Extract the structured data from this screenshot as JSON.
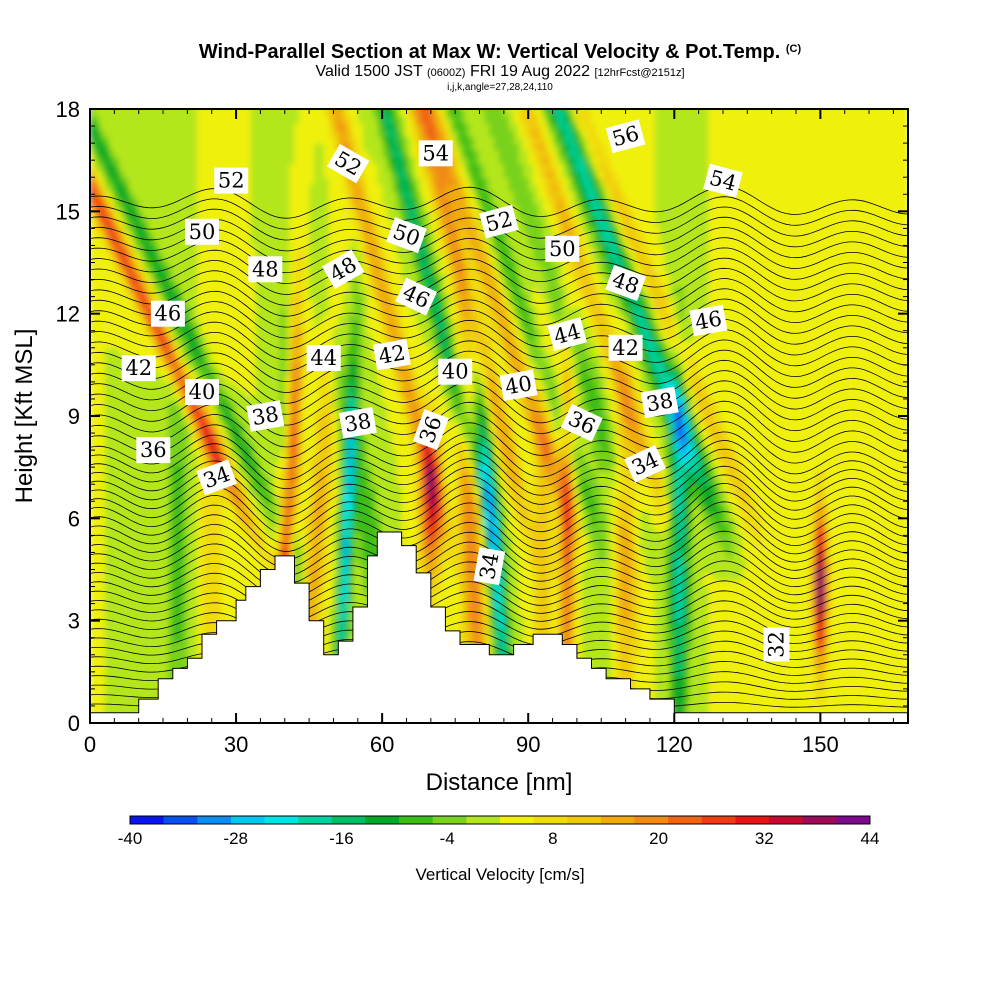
{
  "title": {
    "main": "Wind-Parallel Section at Max W: Vertical Velocity & Pot.Temp.",
    "copyright": "(C)",
    "valid_prefix": "Valid 1500 JST",
    "valid_utc": "(0600Z)",
    "valid_date": "FRI 19 Aug 2022",
    "forecast": "[12hrFcst@2151z]",
    "indices": "i,j,k,angle=27,28,24,110"
  },
  "chart_data": {
    "type": "heatmap",
    "xlabel": "Distance [nm]",
    "ylabel": "Height [Kft MSL]",
    "xlim": [
      0,
      168
    ],
    "ylim": [
      0,
      18
    ],
    "x_ticks": [
      "0",
      "30",
      "60",
      "90",
      "120",
      "150"
    ],
    "x_tick_values": [
      0,
      30,
      60,
      90,
      120,
      150
    ],
    "y_ticks": [
      "0",
      "3",
      "6",
      "9",
      "12",
      "15",
      "18"
    ],
    "y_tick_values": [
      0,
      3,
      6,
      9,
      12,
      15,
      18
    ],
    "colorbar": {
      "title": "Vertical Velocity [cm/s]",
      "min": -40,
      "max": 44,
      "step": 4,
      "tick_labels": [
        "-40",
        "-28",
        "-16",
        "-4",
        "8",
        "20",
        "32",
        "44"
      ],
      "tick_values": [
        -40,
        -28,
        -16,
        -4,
        8,
        20,
        32,
        44
      ],
      "colors": [
        "#0a14f0",
        "#0a50f0",
        "#0a8cf0",
        "#00c8f0",
        "#00e6e6",
        "#00d2a0",
        "#00be64",
        "#00aa28",
        "#3cbe14",
        "#78d21e",
        "#b4e61e",
        "#f0f00a",
        "#f0dc0a",
        "#f0c80a",
        "#f0aa0a",
        "#f08c14",
        "#f06414",
        "#f03c14",
        "#e61414",
        "#c80a32",
        "#a00a5a",
        "#7d0a8c"
      ]
    },
    "terrain_kft": [
      [
        0,
        0.3
      ],
      [
        10,
        0.3
      ],
      [
        10,
        0.7
      ],
      [
        14,
        0.7
      ],
      [
        14,
        1.3
      ],
      [
        17,
        1.3
      ],
      [
        17,
        1.6
      ],
      [
        20,
        1.6
      ],
      [
        20,
        1.9
      ],
      [
        23,
        1.9
      ],
      [
        23,
        2.6
      ],
      [
        26,
        2.6
      ],
      [
        26,
        3.0
      ],
      [
        30,
        3.0
      ],
      [
        30,
        3.6
      ],
      [
        32,
        3.6
      ],
      [
        32,
        4.0
      ],
      [
        35,
        4.0
      ],
      [
        35,
        4.5
      ],
      [
        38,
        4.5
      ],
      [
        38,
        4.9
      ],
      [
        42,
        4.9
      ],
      [
        42,
        4.1
      ],
      [
        45,
        4.1
      ],
      [
        45,
        3.0
      ],
      [
        48,
        3.0
      ],
      [
        48,
        2.0
      ],
      [
        51,
        2.0
      ],
      [
        51,
        2.4
      ],
      [
        54,
        2.4
      ],
      [
        54,
        3.4
      ],
      [
        57,
        3.4
      ],
      [
        57,
        4.9
      ],
      [
        59,
        4.9
      ],
      [
        59,
        5.6
      ],
      [
        64,
        5.6
      ],
      [
        64,
        5.2
      ],
      [
        67,
        5.2
      ],
      [
        67,
        4.4
      ],
      [
        70,
        4.4
      ],
      [
        70,
        3.4
      ],
      [
        73,
        3.4
      ],
      [
        73,
        2.7
      ],
      [
        76,
        2.7
      ],
      [
        76,
        2.3
      ],
      [
        82,
        2.3
      ],
      [
        82,
        2.0
      ],
      [
        87,
        2.0
      ],
      [
        87,
        2.3
      ],
      [
        91,
        2.3
      ],
      [
        91,
        2.6
      ],
      [
        97,
        2.6
      ],
      [
        97,
        2.3
      ],
      [
        100,
        2.3
      ],
      [
        100,
        1.9
      ],
      [
        103,
        1.9
      ],
      [
        103,
        1.6
      ],
      [
        106,
        1.6
      ],
      [
        106,
        1.3
      ],
      [
        111,
        1.3
      ],
      [
        111,
        1.0
      ],
      [
        115,
        1.0
      ],
      [
        115,
        0.7
      ],
      [
        120,
        0.7
      ],
      [
        120,
        0.3
      ],
      [
        168,
        0.3
      ]
    ],
    "contour_labels": [
      {
        "text": "52",
        "x": 29,
        "y": 15.9,
        "rot": 0
      },
      {
        "text": "50",
        "x": 23,
        "y": 14.4,
        "rot": 0
      },
      {
        "text": "48",
        "x": 36,
        "y": 13.3,
        "rot": 0
      },
      {
        "text": "46",
        "x": 16,
        "y": 12.0,
        "rot": 0
      },
      {
        "text": "42",
        "x": 10,
        "y": 10.4,
        "rot": 0
      },
      {
        "text": "40",
        "x": 23,
        "y": 9.7,
        "rot": 0
      },
      {
        "text": "38",
        "x": 36,
        "y": 9.0,
        "rot": -10
      },
      {
        "text": "36",
        "x": 13,
        "y": 8.0,
        "rot": 0
      },
      {
        "text": "34",
        "x": 26,
        "y": 7.2,
        "rot": -20
      },
      {
        "text": "52",
        "x": 53,
        "y": 16.4,
        "rot": 30
      },
      {
        "text": "48",
        "x": 52,
        "y": 13.3,
        "rot": -30
      },
      {
        "text": "44",
        "x": 48,
        "y": 10.7,
        "rot": 0
      },
      {
        "text": "38",
        "x": 55,
        "y": 8.8,
        "rot": -10
      },
      {
        "text": "42",
        "x": 62,
        "y": 10.8,
        "rot": -10
      },
      {
        "text": "54",
        "x": 71,
        "y": 16.7,
        "rot": 0
      },
      {
        "text": "50",
        "x": 65,
        "y": 14.3,
        "rot": 20
      },
      {
        "text": "46",
        "x": 67,
        "y": 12.5,
        "rot": 25
      },
      {
        "text": "40",
        "x": 75,
        "y": 10.3,
        "rot": 0
      },
      {
        "text": "36",
        "x": 70,
        "y": 8.6,
        "rot": -70
      },
      {
        "text": "52",
        "x": 84,
        "y": 14.7,
        "rot": -15
      },
      {
        "text": "34",
        "x": 82,
        "y": 4.6,
        "rot": -80
      },
      {
        "text": "40",
        "x": 88,
        "y": 9.9,
        "rot": -10
      },
      {
        "text": "50",
        "x": 97,
        "y": 13.9,
        "rot": 0
      },
      {
        "text": "44",
        "x": 98,
        "y": 11.4,
        "rot": -15
      },
      {
        "text": "36",
        "x": 101,
        "y": 8.8,
        "rot": 25
      },
      {
        "text": "56",
        "x": 110,
        "y": 17.2,
        "rot": -15
      },
      {
        "text": "48",
        "x": 110,
        "y": 12.9,
        "rot": 20
      },
      {
        "text": "42",
        "x": 110,
        "y": 11.0,
        "rot": 0
      },
      {
        "text": "38",
        "x": 117,
        "y": 9.4,
        "rot": -10
      },
      {
        "text": "34",
        "x": 114,
        "y": 7.6,
        "rot": -25
      },
      {
        "text": "54",
        "x": 130,
        "y": 15.9,
        "rot": 15
      },
      {
        "text": "46",
        "x": 127,
        "y": 11.8,
        "rot": -10
      },
      {
        "text": "32",
        "x": 141,
        "y": 2.3,
        "rot": -90
      }
    ]
  }
}
